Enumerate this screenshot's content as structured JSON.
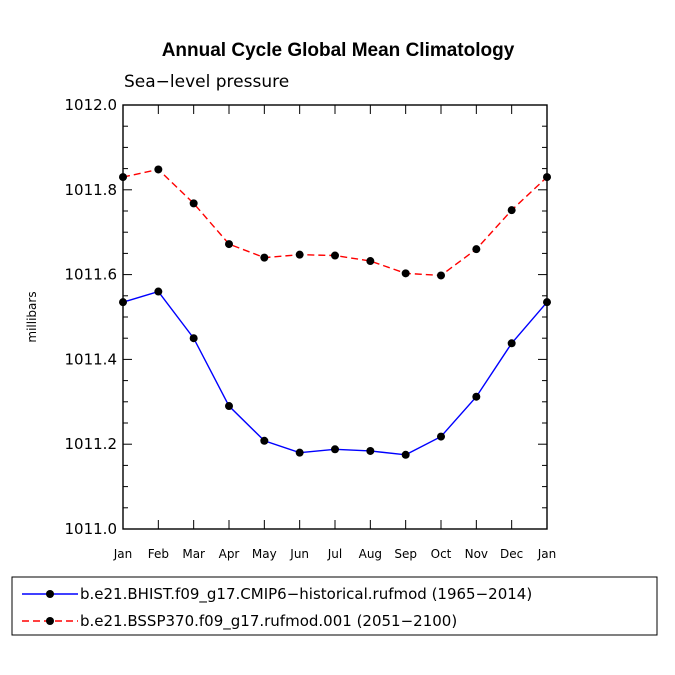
{
  "chart_data": {
    "type": "line",
    "title": "Annual Cycle Global Mean Climatology",
    "subtitle": "Sea−level pressure",
    "xlabel": "",
    "ylabel": "millibars",
    "categories": [
      "Jan",
      "Feb",
      "Mar",
      "Apr",
      "May",
      "Jun",
      "Jul",
      "Aug",
      "Sep",
      "Oct",
      "Nov",
      "Dec",
      "Jan"
    ],
    "ylim": [
      1011.0,
      1012.0
    ],
    "yticks": [
      "1011.0",
      "1011.2",
      "1011.4",
      "1011.6",
      "1011.8",
      "1012.0"
    ],
    "ytick_values": [
      1011.0,
      1011.2,
      1011.4,
      1011.6,
      1011.8,
      1012.0
    ],
    "legend_position": "bottom",
    "series": [
      {
        "name": "b.e21.BHIST.f09_g17.CMIP6−historical.rufmod (1965−2014)",
        "color": "#0000ff",
        "dashed": false,
        "values": [
          1011.535,
          1011.56,
          1011.45,
          1011.29,
          1011.208,
          1011.18,
          1011.188,
          1011.184,
          1011.175,
          1011.218,
          1011.312,
          1011.438,
          1011.535
        ]
      },
      {
        "name": "b.e21.BSSP370.f09_g17.rufmod.001 (2051−2100)",
        "color": "#ff0000",
        "dashed": true,
        "values": [
          1011.83,
          1011.848,
          1011.768,
          1011.672,
          1011.64,
          1011.647,
          1011.645,
          1011.632,
          1011.603,
          1011.598,
          1011.66,
          1011.752,
          1011.83
        ]
      }
    ]
  }
}
